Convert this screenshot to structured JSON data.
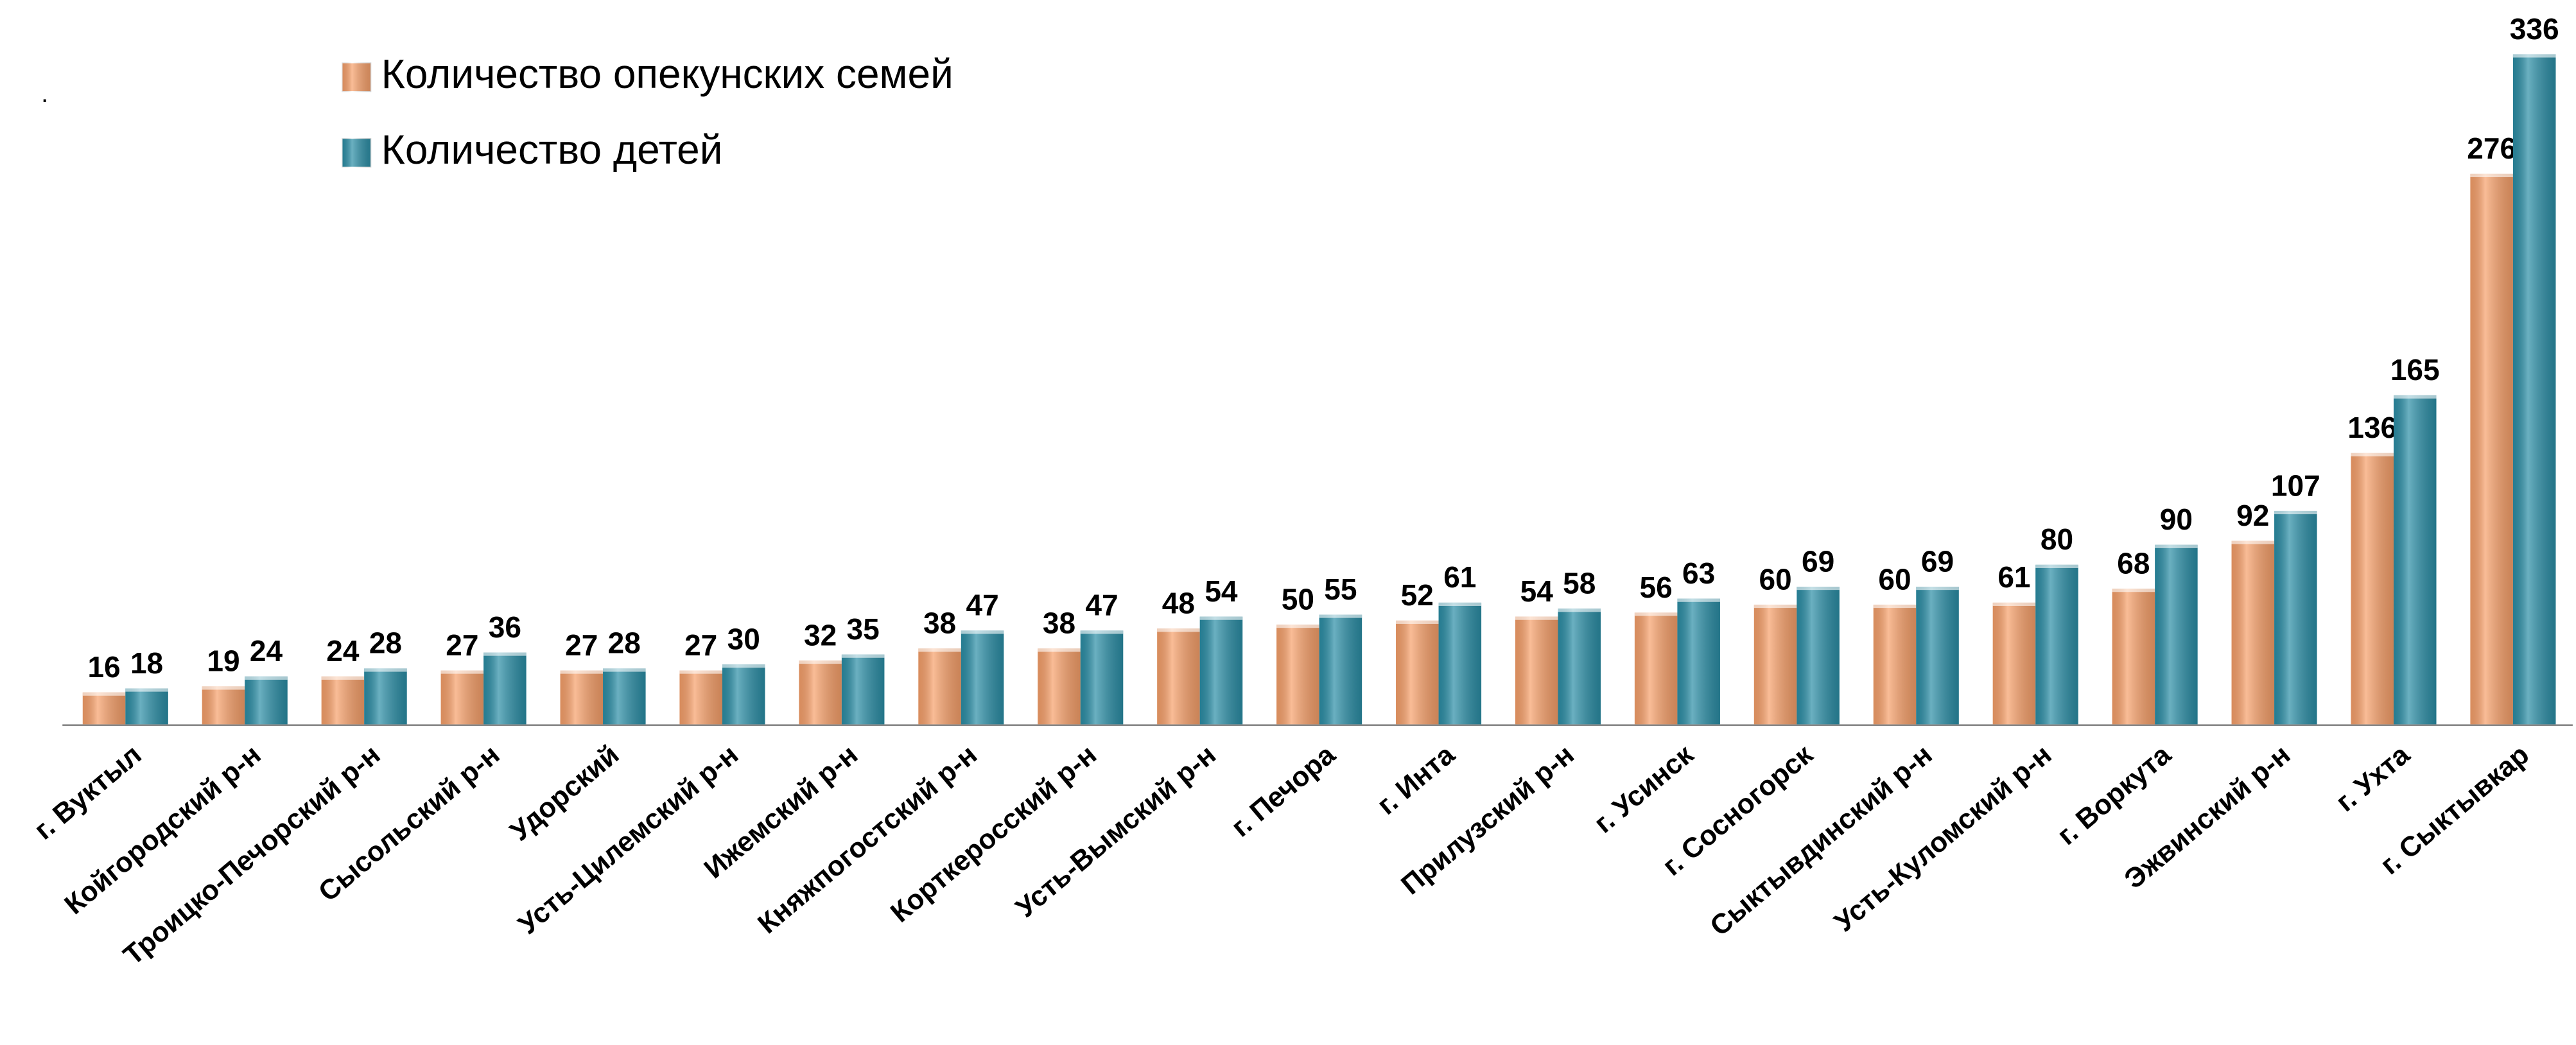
{
  "chart_data": {
    "type": "bar",
    "note": ".",
    "categories": [
      "г. Вуктыл",
      "Койгородский р-н",
      "Троицко-Печорский р-н",
      "Сысольский р-н",
      "Удорский",
      "Усть-Цилемский р-н",
      "Ижемский р-н",
      "Княжпогостский р-н",
      "Корткеросский р-н",
      "Усть-Вымский р-н",
      "г. Печора",
      "г. Инта",
      "Прилузский р-н",
      "г. Усинск",
      "г. Сосногорск",
      "Сыктывдинский р-н",
      "Усть-Куломский р-н",
      "г. Воркута",
      "Эжвинский р-н",
      "г. Ухта",
      "г. Сыктывкар"
    ],
    "series": [
      {
        "name": "Количество опекунских семей",
        "color": "#f7a06a",
        "values": [
          16,
          19,
          24,
          27,
          27,
          27,
          32,
          38,
          38,
          48,
          50,
          52,
          54,
          56,
          60,
          60,
          61,
          68,
          92,
          136,
          276
        ]
      },
      {
        "name": "Количество детей",
        "color": "#2b8ea6",
        "values": [
          18,
          24,
          28,
          36,
          28,
          30,
          35,
          47,
          47,
          54,
          55,
          61,
          58,
          63,
          69,
          69,
          80,
          90,
          107,
          165,
          336
        ]
      }
    ],
    "ylim": [
      0,
      336
    ],
    "legend": "top-left"
  }
}
